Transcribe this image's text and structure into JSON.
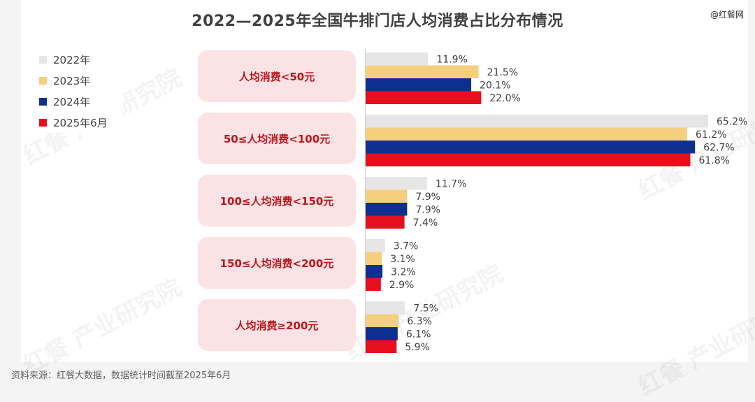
{
  "brand": "@红餐网",
  "source_note": "资料来源：红餐大数据，数据统计时间截至2025年6月",
  "watermark": "红餐 产业研究院",
  "chart_data": {
    "type": "bar",
    "orientation": "horizontal",
    "title": "2022—2025年全国牛排门店人均消费占比分布情况",
    "categories": [
      "人均消费<50元",
      "50≤人均消费<100元",
      "100≤人均消费<150元",
      "150≤人均消费<200元",
      "人均消费≥200元"
    ],
    "series": [
      {
        "name": "2022年",
        "color": "#e6e6e6",
        "values": [
          11.9,
          65.2,
          11.7,
          3.7,
          7.5
        ],
        "labels": [
          "11.9%",
          "65.2%",
          "11.7%",
          "3.7%",
          "7.5%"
        ]
      },
      {
        "name": "2023年",
        "color": "#f6cf7e",
        "values": [
          21.5,
          61.2,
          7.9,
          3.1,
          6.3
        ],
        "labels": [
          "21.5%",
          "61.2%",
          "7.9%",
          "3.1%",
          "6.3%"
        ]
      },
      {
        "name": "2024年",
        "color": "#0f2f8e",
        "values": [
          20.1,
          62.7,
          7.9,
          3.2,
          6.1
        ],
        "labels": [
          "20.1%",
          "62.7%",
          "7.9%",
          "3.2%",
          "6.1%"
        ]
      },
      {
        "name": "2025年6月",
        "color": "#e5101d",
        "values": [
          22.0,
          61.8,
          7.4,
          2.9,
          5.9
        ],
        "labels": [
          "22.0%",
          "61.8%",
          "7.4%",
          "2.9%",
          "5.9%"
        ]
      }
    ],
    "xlim": [
      0,
      65.2
    ],
    "legend_position": "top-left",
    "grid": false
  }
}
